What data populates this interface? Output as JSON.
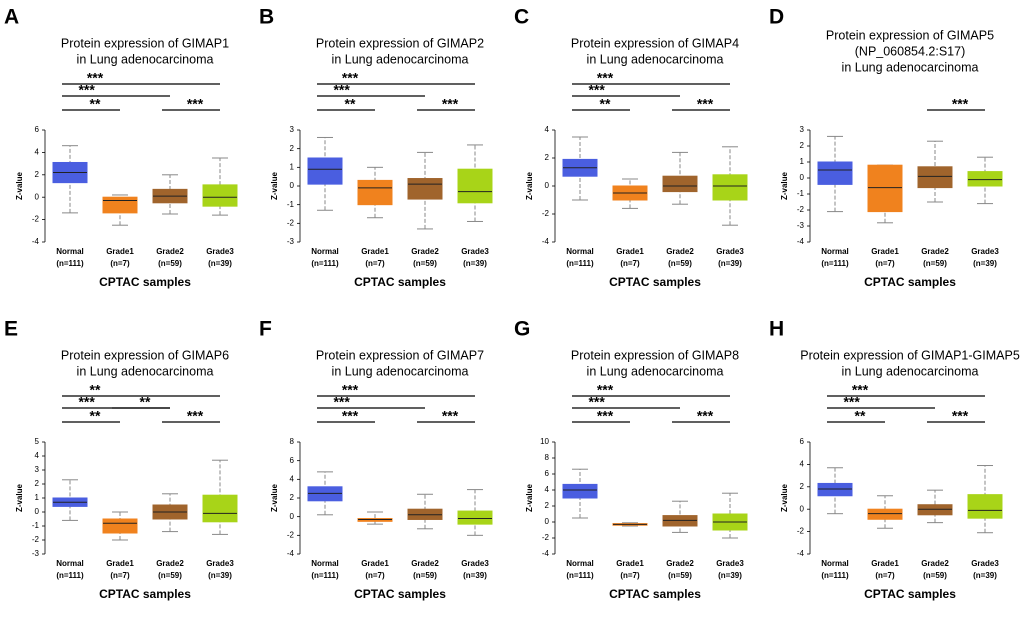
{
  "chart_data": [
    {
      "type": "box",
      "panel": "A",
      "title": [
        "Protein expression of GIMAP1",
        "in Lung adenocarcinoma"
      ],
      "ylabel": "Z-value",
      "xlabel": "CPTAC samples",
      "categories": [
        "Normal",
        "Grade1",
        "Grade2",
        "Grade3"
      ],
      "sample_sizes": [
        "(n=111)",
        "(n=7)",
        "(n=59)",
        "(n=39)"
      ],
      "colors": [
        "#4a5ee0",
        "#f0821e",
        "#a0642c",
        "#a8d418"
      ],
      "ylim": [
        -4,
        6
      ],
      "yticks": [
        -4,
        -2,
        0,
        2,
        4,
        6
      ],
      "boxes": [
        {
          "min": -1.4,
          "q1": 1.3,
          "median": 2.2,
          "q3": 3.1,
          "max": 4.6
        },
        {
          "min": -2.5,
          "q1": -1.4,
          "median": -0.3,
          "q3": 0,
          "max": 0.2
        },
        {
          "min": -1.5,
          "q1": -0.5,
          "median": 0.1,
          "q3": 0.7,
          "max": 2.0
        },
        {
          "min": -1.6,
          "q1": -0.8,
          "median": 0,
          "q3": 1.1,
          "max": 3.5
        }
      ],
      "significance": [
        {
          "from": "Normal",
          "to": "Grade3",
          "text": "***"
        },
        {
          "from": "Normal",
          "to": "Grade2",
          "text": "***"
        },
        {
          "from": "Normal",
          "to": "Grade1",
          "text": "**"
        },
        {
          "from": "Grade2",
          "to": "Grade3",
          "text": "***"
        }
      ]
    },
    {
      "type": "box",
      "panel": "B",
      "title": [
        "Protein expression of GIMAP2",
        "in Lung adenocarcinoma"
      ],
      "ylabel": "Z-value",
      "xlabel": "CPTAC samples",
      "categories": [
        "Normal",
        "Grade1",
        "Grade2",
        "Grade3"
      ],
      "sample_sizes": [
        "(n=111)",
        "(n=7)",
        "(n=59)",
        "(n=39)"
      ],
      "colors": [
        "#4a5ee0",
        "#f0821e",
        "#a0642c",
        "#a8d418"
      ],
      "ylim": [
        -3,
        3
      ],
      "yticks": [
        -3,
        -2,
        -1,
        0,
        1,
        2,
        3
      ],
      "boxes": [
        {
          "min": -1.3,
          "q1": 0.1,
          "median": 0.9,
          "q3": 1.5,
          "max": 2.6
        },
        {
          "min": -1.7,
          "q1": -1.0,
          "median": -0.1,
          "q3": 0.3,
          "max": 1.0
        },
        {
          "min": -2.3,
          "q1": -0.7,
          "median": 0.1,
          "q3": 0.4,
          "max": 1.8
        },
        {
          "min": -1.9,
          "q1": -0.9,
          "median": -0.3,
          "q3": 0.9,
          "max": 2.2
        }
      ],
      "significance": [
        {
          "from": "Normal",
          "to": "Grade3",
          "text": "***"
        },
        {
          "from": "Normal",
          "to": "Grade2",
          "text": "***"
        },
        {
          "from": "Normal",
          "to": "Grade1",
          "text": "**"
        },
        {
          "from": "Grade2",
          "to": "Grade3",
          "text": "***"
        }
      ]
    },
    {
      "type": "box",
      "panel": "C",
      "title": [
        "Protein expression of GIMAP4",
        "in Lung adenocarcinoma"
      ],
      "ylabel": "Z-value",
      "xlabel": "CPTAC samples",
      "categories": [
        "Normal",
        "Grade1",
        "Grade2",
        "Grade3"
      ],
      "sample_sizes": [
        "(n=111)",
        "(n=7)",
        "(n=59)",
        "(n=39)"
      ],
      "colors": [
        "#4a5ee0",
        "#f0821e",
        "#a0642c",
        "#a8d418"
      ],
      "ylim": [
        -4,
        4
      ],
      "yticks": [
        -4,
        -2,
        0,
        2,
        4
      ],
      "boxes": [
        {
          "min": -1.0,
          "q1": 0.7,
          "median": 1.3,
          "q3": 1.9,
          "max": 3.5
        },
        {
          "min": -1.6,
          "q1": -1.0,
          "median": -0.5,
          "q3": 0,
          "max": 0.5
        },
        {
          "min": -1.3,
          "q1": -0.4,
          "median": 0,
          "q3": 0.7,
          "max": 2.4
        },
        {
          "min": -2.8,
          "q1": -1.0,
          "median": 0,
          "q3": 0.8,
          "max": 2.8
        }
      ],
      "significance": [
        {
          "from": "Normal",
          "to": "Grade3",
          "text": "***"
        },
        {
          "from": "Normal",
          "to": "Grade2",
          "text": "***"
        },
        {
          "from": "Normal",
          "to": "Grade1",
          "text": "**"
        },
        {
          "from": "Grade2",
          "to": "Grade3",
          "text": "***"
        }
      ]
    },
    {
      "type": "box",
      "panel": "D",
      "title": [
        "Protein expression of GIMAP5",
        "(NP_060854.2:S17)",
        "in Lung adenocarcinoma"
      ],
      "ylabel": "Z-value",
      "xlabel": "CPTAC samples",
      "categories": [
        "Normal",
        "Grade1",
        "Grade2",
        "Grade3"
      ],
      "sample_sizes": [
        "(n=111)",
        "(n=7)",
        "(n=59)",
        "(n=39)"
      ],
      "colors": [
        "#4a5ee0",
        "#f0821e",
        "#a0642c",
        "#a8d418"
      ],
      "ylim": [
        -4,
        3
      ],
      "yticks": [
        -4,
        -3,
        -2,
        -1,
        0,
        1,
        2,
        3
      ],
      "boxes": [
        {
          "min": -2.1,
          "q1": -0.4,
          "median": 0.5,
          "q3": 1.0,
          "max": 2.6
        },
        {
          "min": -2.8,
          "q1": -2.1,
          "median": -0.6,
          "q3": 0.8,
          "max": 0.8
        },
        {
          "min": -1.5,
          "q1": -0.6,
          "median": 0.1,
          "q3": 0.7,
          "max": 2.3
        },
        {
          "min": -1.6,
          "q1": -0.5,
          "median": -0.1,
          "q3": 0.4,
          "max": 1.3
        }
      ],
      "significance": [
        {
          "from": "Grade2",
          "to": "Grade3",
          "text": "***"
        }
      ]
    },
    {
      "type": "box",
      "panel": "E",
      "title": [
        "Protein expression of GIMAP6",
        "in Lung adenocarcinoma"
      ],
      "ylabel": "Z-value",
      "xlabel": "CPTAC samples",
      "categories": [
        "Normal",
        "Grade1",
        "Grade2",
        "Grade3"
      ],
      "sample_sizes": [
        "(n=111)",
        "(n=7)",
        "(n=59)",
        "(n=39)"
      ],
      "colors": [
        "#4a5ee0",
        "#f0821e",
        "#a0642c",
        "#a8d418"
      ],
      "ylim": [
        -3,
        5
      ],
      "yticks": [
        -3,
        -2,
        -1,
        0,
        1,
        2,
        3,
        4,
        5
      ],
      "boxes": [
        {
          "min": -0.6,
          "q1": 0.4,
          "median": 0.7,
          "q3": 1.0,
          "max": 2.3
        },
        {
          "min": -2.0,
          "q1": -1.5,
          "median": -0.8,
          "q3": -0.5,
          "max": 0
        },
        {
          "min": -1.4,
          "q1": -0.5,
          "median": 0,
          "q3": 0.5,
          "max": 1.3
        },
        {
          "min": -1.6,
          "q1": -0.7,
          "median": -0.1,
          "q3": 1.2,
          "max": 3.7
        }
      ],
      "significance": [
        {
          "from": "Normal",
          "to": "Grade3",
          "text": "**"
        },
        {
          "from": "Normal",
          "to": "Grade2",
          "text": "***"
        },
        {
          "from": "Normal",
          "to": "Grade1",
          "text": "**"
        },
        {
          "from": "Grade1",
          "to": "Grade2",
          "text": "**"
        },
        {
          "from": "Grade2",
          "to": "Grade3",
          "text": "***"
        }
      ]
    },
    {
      "type": "box",
      "panel": "F",
      "title": [
        "Protein expression of GIMAP7",
        "in Lung adenocarcinoma"
      ],
      "ylabel": "Z-value",
      "xlabel": "CPTAC samples",
      "categories": [
        "Normal",
        "Grade1",
        "Grade2",
        "Grade3"
      ],
      "sample_sizes": [
        "(n=111)",
        "(n=7)",
        "(n=59)",
        "(n=39)"
      ],
      "colors": [
        "#4a5ee0",
        "#f0821e",
        "#a0642c",
        "#a8d418"
      ],
      "ylim": [
        -4,
        8
      ],
      "yticks": [
        -4,
        -2,
        0,
        2,
        4,
        6,
        8
      ],
      "boxes": [
        {
          "min": 0.2,
          "q1": 1.7,
          "median": 2.5,
          "q3": 3.2,
          "max": 4.8
        },
        {
          "min": -0.8,
          "q1": -0.5,
          "median": -0.3,
          "q3": -0.2,
          "max": 0.5
        },
        {
          "min": -1.3,
          "q1": -0.3,
          "median": 0.2,
          "q3": 0.8,
          "max": 2.4
        },
        {
          "min": -2.0,
          "q1": -0.8,
          "median": -0.2,
          "q3": 0.6,
          "max": 2.9
        }
      ],
      "significance": [
        {
          "from": "Normal",
          "to": "Grade3",
          "text": "***"
        },
        {
          "from": "Normal",
          "to": "Grade2",
          "text": "***"
        },
        {
          "from": "Normal",
          "to": "Grade1",
          "text": "***"
        },
        {
          "from": "Grade2",
          "to": "Grade3",
          "text": "***"
        }
      ]
    },
    {
      "type": "box",
      "panel": "G",
      "title": [
        "Protein expression of GIMAP8",
        "in Lung adenocarcinoma"
      ],
      "ylabel": "Z-value",
      "xlabel": "CPTAC samples",
      "categories": [
        "Normal",
        "Grade1",
        "Grade2",
        "Grade3"
      ],
      "sample_sizes": [
        "(n=111)",
        "(n=7)",
        "(n=59)",
        "(n=39)"
      ],
      "colors": [
        "#4a5ee0",
        "#f0821e",
        "#a0642c",
        "#a8d418"
      ],
      "ylim": [
        -4,
        10
      ],
      "yticks": [
        -4,
        -2,
        0,
        2,
        4,
        6,
        8,
        10
      ],
      "boxes": [
        {
          "min": 0.5,
          "q1": 3.0,
          "median": 4.0,
          "q3": 4.7,
          "max": 6.6
        },
        {
          "min": -0.5,
          "q1": -0.4,
          "median": -0.3,
          "q3": -0.2,
          "max": -0.1
        },
        {
          "min": -1.3,
          "q1": -0.5,
          "median": 0.2,
          "q3": 0.8,
          "max": 2.6
        },
        {
          "min": -2.0,
          "q1": -1.0,
          "median": 0,
          "q3": 1.0,
          "max": 3.6
        }
      ],
      "significance": [
        {
          "from": "Normal",
          "to": "Grade3",
          "text": "***"
        },
        {
          "from": "Normal",
          "to": "Grade2",
          "text": "***"
        },
        {
          "from": "Normal",
          "to": "Grade1",
          "text": "***"
        },
        {
          "from": "Grade2",
          "to": "Grade3",
          "text": "***"
        }
      ]
    },
    {
      "type": "box",
      "panel": "H",
      "title": [
        "Protein expression of GIMAP1-GIMAP5",
        "in Lung adenocarcinoma"
      ],
      "ylabel": "Z-value",
      "xlabel": "CPTAC samples",
      "categories": [
        "Normal",
        "Grade1",
        "Grade2",
        "Grade3"
      ],
      "sample_sizes": [
        "(n=111)",
        "(n=7)",
        "(n=59)",
        "(n=39)"
      ],
      "colors": [
        "#4a5ee0",
        "#f0821e",
        "#a0642c",
        "#a8d418"
      ],
      "ylim": [
        -4,
        6
      ],
      "yticks": [
        -4,
        -2,
        0,
        2,
        4,
        6
      ],
      "boxes": [
        {
          "min": -0.4,
          "q1": 1.2,
          "median": 1.8,
          "q3": 2.3,
          "max": 3.7
        },
        {
          "min": -1.7,
          "q1": -0.9,
          "median": -0.4,
          "q3": 0,
          "max": 1.2
        },
        {
          "min": -1.2,
          "q1": -0.5,
          "median": 0,
          "q3": 0.4,
          "max": 1.7
        },
        {
          "min": -2.1,
          "q1": -0.8,
          "median": -0.1,
          "q3": 1.3,
          "max": 3.9
        }
      ],
      "significance": [
        {
          "from": "Normal",
          "to": "Grade3",
          "text": "***"
        },
        {
          "from": "Normal",
          "to": "Grade2",
          "text": "***"
        },
        {
          "from": "Normal",
          "to": "Grade1",
          "text": "**"
        },
        {
          "from": "Grade2",
          "to": "Grade3",
          "text": "***"
        }
      ]
    }
  ]
}
